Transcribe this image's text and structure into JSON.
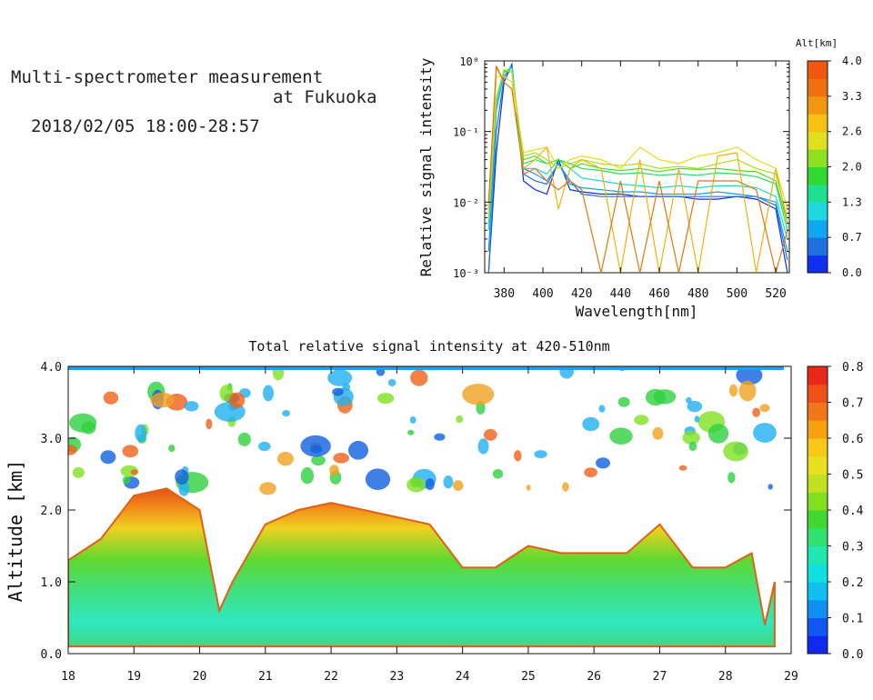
{
  "header": {
    "title_line1": "Multi-spectrometer measurement",
    "title_line2": "at Fukuoka",
    "datetime": "2018/02/05 18:00-28:57"
  },
  "chart_data": [
    {
      "type": "line",
      "xlabel": "Wavelength[nm]",
      "ylabel": "Relative signal intensity",
      "yscale": "log",
      "xlim": [
        370,
        527
      ],
      "ylim": [
        0.001,
        1
      ],
      "xticks": [
        380,
        400,
        420,
        440,
        460,
        480,
        500,
        520
      ],
      "yticks": [
        {
          "value": 0.001,
          "label": "10⁻³"
        },
        {
          "value": 0.01,
          "label": "10⁻²"
        },
        {
          "value": 0.1,
          "label": "10⁻¹"
        },
        {
          "value": 1,
          "label": "10⁰"
        }
      ],
      "x": [
        372,
        376,
        380,
        384,
        390,
        396,
        402,
        408,
        414,
        420,
        430,
        440,
        450,
        460,
        470,
        480,
        490,
        500,
        510,
        520,
        526
      ],
      "series": [
        {
          "color": "#1030d0",
          "values": [
            0.001,
            0.05,
            0.5,
            0.9,
            0.02,
            0.015,
            0.013,
            0.04,
            0.015,
            0.014,
            0.013,
            0.013,
            0.012,
            0.012,
            0.012,
            0.011,
            0.011,
            0.012,
            0.011,
            0.008,
            0.001
          ]
        },
        {
          "color": "#2070e0",
          "values": [
            0.001,
            0.1,
            0.6,
            0.85,
            0.025,
            0.02,
            0.018,
            0.035,
            0.02,
            0.013,
            0.012,
            0.012,
            0.012,
            0.012,
            0.012,
            0.012,
            0.012,
            0.012,
            0.012,
            0.009,
            0.0015
          ]
        },
        {
          "color": "#109ef0",
          "values": [
            0.002,
            0.2,
            0.7,
            0.8,
            0.03,
            0.025,
            0.02,
            0.035,
            0.018,
            0.016,
            0.015,
            0.014,
            0.014,
            0.013,
            0.013,
            0.013,
            0.014,
            0.013,
            0.012,
            0.01,
            0.002
          ]
        },
        {
          "color": "#20d8d0",
          "values": [
            0.004,
            0.25,
            0.7,
            0.8,
            0.03,
            0.03,
            0.025,
            0.04,
            0.03,
            0.022,
            0.02,
            0.018,
            0.017,
            0.016,
            0.017,
            0.016,
            0.017,
            0.017,
            0.016,
            0.012,
            0.003
          ]
        },
        {
          "color": "#20e060",
          "values": [
            0.005,
            0.3,
            0.75,
            0.7,
            0.035,
            0.04,
            0.035,
            0.04,
            0.035,
            0.03,
            0.028,
            0.025,
            0.026,
            0.024,
            0.025,
            0.024,
            0.026,
            0.025,
            0.023,
            0.018,
            0.004
          ]
        },
        {
          "color": "#50d820",
          "values": [
            0.006,
            0.3,
            0.7,
            0.7,
            0.04,
            0.045,
            0.035,
            0.04,
            0.03,
            0.035,
            0.03,
            0.028,
            0.03,
            0.027,
            0.03,
            0.029,
            0.03,
            0.028,
            0.027,
            0.02,
            0.005
          ]
        },
        {
          "color": "#a8e020",
          "values": [
            0.006,
            0.3,
            0.75,
            0.7,
            0.045,
            0.05,
            0.04,
            0.03,
            0.035,
            0.04,
            0.035,
            0.033,
            0.035,
            0.03,
            0.032,
            0.03,
            0.035,
            0.04,
            0.03,
            0.025,
            0.006
          ]
        },
        {
          "color": "#e8d820",
          "values": [
            0.008,
            0.6,
            0.6,
            0.5,
            0.05,
            0.055,
            0.06,
            0.03,
            0.04,
            0.045,
            0.04,
            0.03,
            0.06,
            0.04,
            0.035,
            0.045,
            0.05,
            0.06,
            0.04,
            0.03,
            0.008
          ]
        },
        {
          "color": "#f0b010",
          "values": [
            0.008,
            0.8,
            0.5,
            0.4,
            0.03,
            0.04,
            0.06,
            0.008,
            0.03,
            0.04,
            0.03,
            0.001,
            0.04,
            0.001,
            0.03,
            0.001,
            0.045,
            0.05,
            0.001,
            0.03,
            0.005
          ]
        },
        {
          "color": "#e07810",
          "values": [
            0.01,
            0.85,
            0.5,
            0.4,
            0.025,
            0.03,
            0.02,
            0.015,
            0.02,
            0.015,
            0.001,
            0.02,
            0.001,
            0.02,
            0.001,
            0.02,
            0.02,
            0.02,
            0.015,
            0.001,
            0.004
          ]
        }
      ],
      "colorbar": {
        "title": "Alt[km]",
        "ticks": [
          "0.0",
          "0.7",
          "1.3",
          "2.0",
          "2.6",
          "3.3",
          "4.0"
        ],
        "colors": [
          "#1030f0",
          "#2070e0",
          "#10a8f0",
          "#20d8e0",
          "#20e090",
          "#30d830",
          "#90e020",
          "#e0e020",
          "#f8c010",
          "#f09810",
          "#f07010",
          "#f05810"
        ]
      }
    },
    {
      "type": "heatmap",
      "title": "Total relative signal intensity at 420-510nm",
      "ylabel": "Altitude [km]",
      "xlim": [
        18,
        29
      ],
      "ylim": [
        0,
        4
      ],
      "xticks": [
        "18",
        "19",
        "20",
        "21",
        "22",
        "23",
        "24",
        "25",
        "26",
        "27",
        "28",
        "29"
      ],
      "yticks": [
        "0.0",
        "1.0",
        "2.0",
        "3.0",
        "4.0"
      ],
      "x_hours": [
        18.0,
        18.5,
        19.0,
        19.5,
        20.0,
        20.3,
        20.5,
        21.0,
        21.5,
        22.0,
        22.5,
        23.0,
        23.5,
        24.0,
        24.5,
        25.0,
        25.5,
        26.0,
        26.5,
        27.0,
        27.5,
        28.0,
        28.4,
        28.6,
        28.75
      ],
      "cloud_base_km": [
        1.3,
        1.6,
        2.2,
        2.3,
        2.0,
        0.6,
        1.0,
        1.8,
        2.0,
        2.1,
        2.0,
        1.9,
        1.8,
        1.2,
        1.2,
        1.5,
        1.4,
        1.4,
        1.4,
        1.8,
        1.2,
        1.2,
        1.4,
        0.4,
        1.0
      ],
      "colorbar": {
        "ticks": [
          "0.0",
          "0.1",
          "0.2",
          "0.3",
          "0.4",
          "0.5",
          "0.6",
          "0.7",
          "0.8"
        ],
        "colors": [
          "#1028f0",
          "#1058f0",
          "#1090f0",
          "#10c0f0",
          "#10e0e0",
          "#20e8b0",
          "#30e070",
          "#40d830",
          "#80e020",
          "#c0e020",
          "#e8e020",
          "#f8c818",
          "#f8a010",
          "#f07818",
          "#f05018",
          "#e82818"
        ]
      }
    }
  ]
}
